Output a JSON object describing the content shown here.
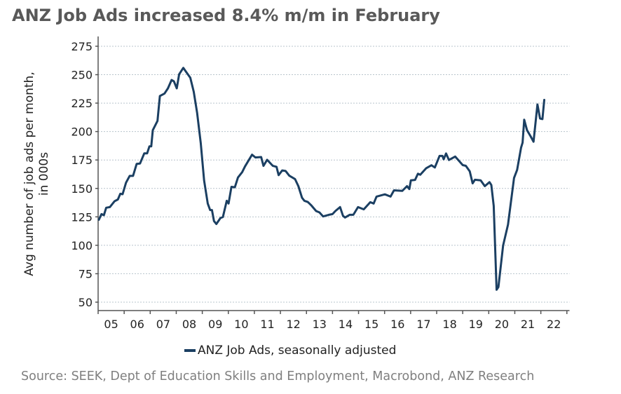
{
  "chart_data": {
    "type": "line",
    "title": "ANZ Job Ads increased 8.4% m/m in February",
    "xlabel": "",
    "ylabel": [
      "Avg number of job ads per month,",
      "in 000s"
    ],
    "xlim": [
      2005,
      2023.1
    ],
    "ylim": [
      42.6,
      283.6
    ],
    "yticks": [
      50,
      75,
      100,
      125,
      150,
      175,
      200,
      225,
      250,
      275
    ],
    "xtick_years": [
      2005,
      2006,
      2007,
      2008,
      2009,
      2010,
      2011,
      2012,
      2013,
      2014,
      2015,
      2016,
      2017,
      2018,
      2019,
      2020,
      2021,
      2022,
      2023
    ],
    "xtick_labels": [
      "05",
      "06",
      "07",
      "08",
      "09",
      "10",
      "11",
      "12",
      "13",
      "14",
      "15",
      "16",
      "17",
      "18",
      "19",
      "20",
      "21",
      "22"
    ],
    "grid": "horizontal dotted",
    "legend_position": "bottom",
    "color": "#1b3f62",
    "series": [
      {
        "name": "ANZ Job Ads, seasonally adjusted",
        "x": [
          2005.03,
          2005.13,
          2005.22,
          2005.31,
          2005.45,
          2005.63,
          2005.76,
          2005.85,
          2005.94,
          2006.07,
          2006.21,
          2006.34,
          2006.48,
          2006.61,
          2006.77,
          2006.88,
          2006.97,
          2007.04,
          2007.1,
          2007.28,
          2007.37,
          2007.55,
          2007.68,
          2007.82,
          2007.91,
          2008.02,
          2008.11,
          2008.27,
          2008.38,
          2008.54,
          2008.67,
          2008.8,
          2008.94,
          2009.07,
          2009.21,
          2009.3,
          2009.37,
          2009.45,
          2009.54,
          2009.7,
          2009.79,
          2009.94,
          2010.01,
          2010.12,
          2010.25,
          2010.37,
          2010.53,
          2010.64,
          2010.91,
          2011.04,
          2011.26,
          2011.35,
          2011.49,
          2011.71,
          2011.85,
          2011.93,
          2012.07,
          2012.2,
          2012.34,
          2012.56,
          2012.69,
          2012.83,
          2012.92,
          2013.05,
          2013.19,
          2013.37,
          2013.5,
          2013.64,
          2013.86,
          2014.0,
          2014.11,
          2014.29,
          2014.4,
          2014.48,
          2014.66,
          2014.8,
          2014.98,
          2015.2,
          2015.45,
          2015.58,
          2015.69,
          2016.01,
          2016.23,
          2016.36,
          2016.68,
          2016.86,
          2016.95,
          2017.01,
          2017.17,
          2017.28,
          2017.37,
          2017.6,
          2017.8,
          2017.93,
          2018.11,
          2018.22,
          2018.27,
          2018.36,
          2018.47,
          2018.71,
          2019.0,
          2019.12,
          2019.27,
          2019.38,
          2019.47,
          2019.69,
          2019.85,
          2020.03,
          2020.1,
          2020.19,
          2020.3,
          2020.37,
          2020.55,
          2020.74,
          2020.97,
          2021.09,
          2021.24,
          2021.3,
          2021.36,
          2021.47,
          2021.6,
          2021.72,
          2021.87,
          2021.97,
          2022.06,
          2022.13
        ],
        "values": [
          122.5,
          127.4,
          126.4,
          133,
          133.6,
          138.7,
          140.3,
          145.3,
          144.9,
          155,
          161,
          161,
          171.6,
          171.9,
          180.8,
          180.8,
          187,
          187,
          201.2,
          209.4,
          231.3,
          233.4,
          238,
          245.3,
          244.2,
          238,
          250.4,
          256,
          252.4,
          247.3,
          235,
          216.6,
          190,
          157,
          136.7,
          131,
          131,
          121.3,
          118.7,
          124,
          124.8,
          139.1,
          136.7,
          151.4,
          151,
          159.6,
          164.3,
          169.4,
          179.7,
          177.2,
          177.6,
          169.8,
          175.2,
          169.8,
          169,
          161.7,
          165.8,
          165.3,
          161.2,
          158.2,
          152,
          141.8,
          139.1,
          138.1,
          135,
          130.1,
          128.9,
          125.4,
          126.8,
          127.4,
          130.1,
          133.6,
          126,
          124.4,
          126.8,
          126.8,
          133.6,
          131.6,
          137.9,
          136.7,
          142.8,
          144.8,
          142.8,
          148.3,
          147.9,
          152,
          149.4,
          157.1,
          157.5,
          162.9,
          162,
          167.8,
          170.4,
          168.4,
          178.6,
          178.6,
          175.6,
          180.7,
          175,
          178,
          170.5,
          169.9,
          165,
          154.5,
          157.6,
          157.1,
          152,
          155.5,
          153,
          134.6,
          60.9,
          63.3,
          99.8,
          118.2,
          159.2,
          166.3,
          185.8,
          190.3,
          210.4,
          201.2,
          196.1,
          191,
          223.8,
          211.5,
          210.9,
          227.8
        ]
      }
    ],
    "source": "Source: SEEK, Dept of Education Skills and Employment, Macrobond, ANZ Research"
  }
}
